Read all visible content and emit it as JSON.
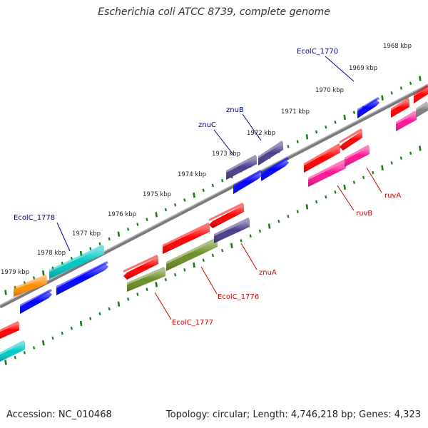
{
  "title": "Escherichia coli ATCC 8739, complete genome",
  "accession_text": "Accession: NC_010468",
  "summary_text": "Topology: circular; Length: 4,746,218 bp; Genes: 4,323",
  "scale_labels": [
    "1968 kbp",
    "1969 kbp",
    "1970 kbp",
    "1971 kbp",
    "1972 kbp",
    "1973 kbp",
    "1974 kbp",
    "1975 kbp",
    "1976 kbp",
    "1977 kbp",
    "1978 kbp",
    "1979 kbp"
  ],
  "gene_labels": {
    "EcolC_1770": "EcolC_1770",
    "znuB": "znuB",
    "znuC": "znuC",
    "EcolC_1778": "EcolC_1778",
    "ruvA": "ruvA",
    "ruvB": "ruvB",
    "znuA": "znuA",
    "EcolC_1776": "EcolC_1776",
    "EcolC_1777": "EcolC_1777"
  },
  "colors": {
    "label_forward": "#00008b",
    "label_reverse": "#cc0000",
    "backbone": "#8c8c8c",
    "tick": "#1a7a1a",
    "red": "#ff0000",
    "blue": "#0000ff",
    "slate": "#483d8b",
    "magenta": "#ff1493",
    "olive": "#6b8e23",
    "cyan": "#00c8c8",
    "orange": "#ff8c00",
    "gray": "#808080"
  }
}
